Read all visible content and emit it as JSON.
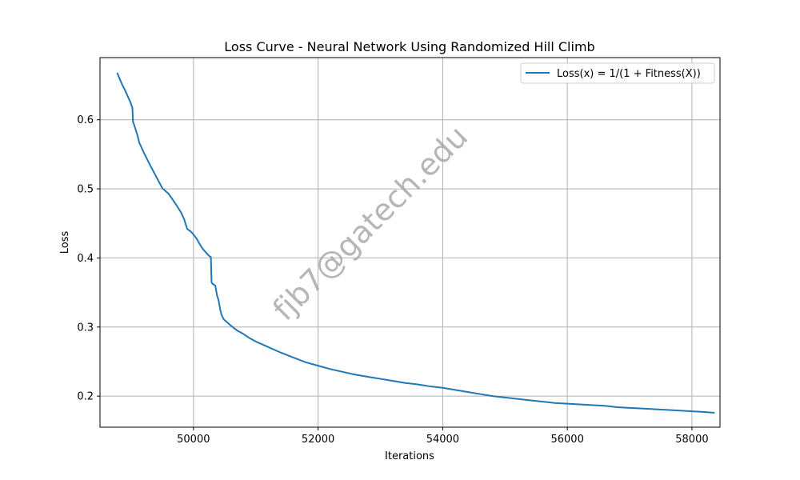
{
  "chart_data": {
    "type": "line",
    "title": "Loss Curve - Neural Network Using Randomized Hill Climb",
    "xlabel": "Iterations",
    "ylabel": "Loss",
    "xlim": [
      48500,
      58450
    ],
    "ylim": [
      0.155,
      0.69
    ],
    "xticks": [
      50000,
      52000,
      54000,
      56000,
      58000
    ],
    "yticks": [
      0.2,
      0.3,
      0.4,
      0.5,
      0.6
    ],
    "xtick_labels": [
      "50000",
      "52000",
      "54000",
      "56000",
      "58000"
    ],
    "ytick_labels": [
      "0.2",
      "0.3",
      "0.4",
      "0.5",
      "0.6"
    ],
    "grid": true,
    "legend_position": "top-right",
    "watermark": "fjb7@gatech.edu",
    "series": [
      {
        "name": "Loss(x) = 1/(1 + Fitness(X))",
        "color": "#1f77b4",
        "x": [
          48780,
          48850,
          48900,
          48950,
          48990,
          49020,
          49030,
          49050,
          49100,
          49130,
          49200,
          49300,
          49400,
          49500,
          49600,
          49700,
          49750,
          49800,
          49850,
          49900,
          49930,
          49960,
          49980,
          50000,
          50050,
          50100,
          50150,
          50200,
          50250,
          50280,
          50290,
          50300,
          50350,
          50380,
          50400,
          50430,
          50450,
          50480,
          50500,
          50600,
          50700,
          50800,
          50900,
          51000,
          51200,
          51400,
          51600,
          51800,
          52000,
          52200,
          52400,
          52600,
          52800,
          53000,
          53200,
          53400,
          53600,
          53800,
          54000,
          54200,
          54400,
          54600,
          54800,
          55000,
          55200,
          55400,
          55600,
          55800,
          56000,
          56200,
          56400,
          56600,
          56800,
          57000,
          57200,
          57400,
          57600,
          57800,
          58000,
          58200,
          58350
        ],
        "y": [
          0.667,
          0.652,
          0.643,
          0.633,
          0.625,
          0.617,
          0.597,
          0.592,
          0.578,
          0.567,
          0.553,
          0.535,
          0.518,
          0.501,
          0.493,
          0.48,
          0.473,
          0.466,
          0.456,
          0.442,
          0.44,
          0.438,
          0.436,
          0.434,
          0.428,
          0.42,
          0.413,
          0.408,
          0.403,
          0.401,
          0.365,
          0.363,
          0.36,
          0.345,
          0.34,
          0.325,
          0.318,
          0.312,
          0.31,
          0.302,
          0.295,
          0.29,
          0.284,
          0.279,
          0.271,
          0.263,
          0.256,
          0.249,
          0.244,
          0.239,
          0.235,
          0.231,
          0.228,
          0.225,
          0.222,
          0.219,
          0.217,
          0.214,
          0.212,
          0.209,
          0.206,
          0.203,
          0.2,
          0.198,
          0.196,
          0.194,
          0.192,
          0.19,
          0.189,
          0.188,
          0.187,
          0.186,
          0.184,
          0.183,
          0.182,
          0.181,
          0.18,
          0.179,
          0.178,
          0.177,
          0.176
        ]
      }
    ]
  }
}
